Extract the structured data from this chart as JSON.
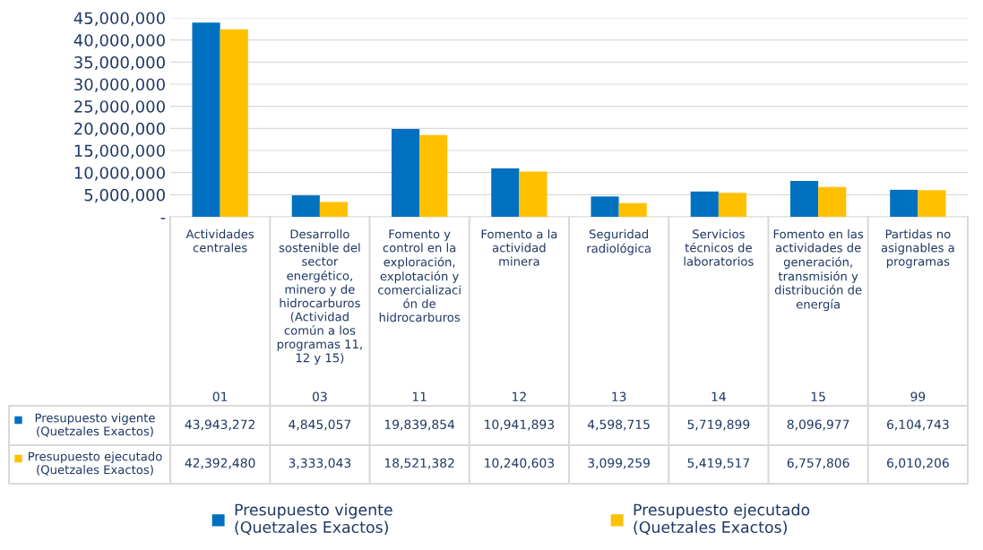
{
  "chart_data": {
    "type": "bar",
    "categories": [
      "Actividades\ncentrales\n01",
      "Desarrollo\nsostenible del\nsector\nenergético,\nminero y de\nhidrocarburos\n(Actividad\ncomún a los\nprogramas 11,\n12 y 15)\n03",
      "Fomento y\ncontrol en la\nexploración,\nexplotación y\ncomercializaci\nón de\nhidrocarburos\n11",
      "Fomento a la\nactividad\nminera\n12",
      "Seguridad\nradiológica\n13",
      "Servicios\ntécnicos de\nlaboratorios\n14",
      "Fomento en las\nactividades de\ngeneración,\ntransmisión y\ndistribución de\nenergía\n15",
      "Partidas no\nasignables a\nprogramas\n99"
    ],
    "series": [
      {
        "name": "Presupuesto vigente\n(Quetzales Exactos)",
        "color": "#0070c0",
        "values": [
          43943272,
          4845057,
          19839854,
          10941893,
          4598715,
          5719899,
          8096977,
          6104743
        ],
        "value_labels": [
          "43,943,272",
          "4,845,057",
          "19,839,854",
          "10,941,893",
          "4,598,715",
          "5,719,899",
          "8,096,977",
          "6,104,743"
        ]
      },
      {
        "name": "Presupuesto ejecutado\n(Quetzales Exactos)",
        "color": "#ffc000",
        "values": [
          42392480,
          3333043,
          18521382,
          10240603,
          3099259,
          5419517,
          6757806,
          6010206
        ],
        "value_labels": [
          "42,392,480",
          "3,333,043",
          "18,521,382",
          "10,240,603",
          "3,099,259",
          "5,419,517",
          "6,757,806",
          "6,010,206"
        ]
      }
    ],
    "ylim": [
      0,
      45000000
    ],
    "yticks": [
      {
        "value": 0,
        "label": "-"
      },
      {
        "value": 5000000,
        "label": "5,000,000"
      },
      {
        "value": 10000000,
        "label": "10,000,000"
      },
      {
        "value": 15000000,
        "label": "15,000,000"
      },
      {
        "value": 20000000,
        "label": "20,000,000"
      },
      {
        "value": 25000000,
        "label": "25,000,000"
      },
      {
        "value": 30000000,
        "label": "30,000,000"
      },
      {
        "value": 35000000,
        "label": "35,000,000"
      },
      {
        "value": 40000000,
        "label": "40,000,000"
      },
      {
        "value": 45000000,
        "label": "45,000,000"
      }
    ],
    "grid": "y",
    "legend": "bottom"
  }
}
